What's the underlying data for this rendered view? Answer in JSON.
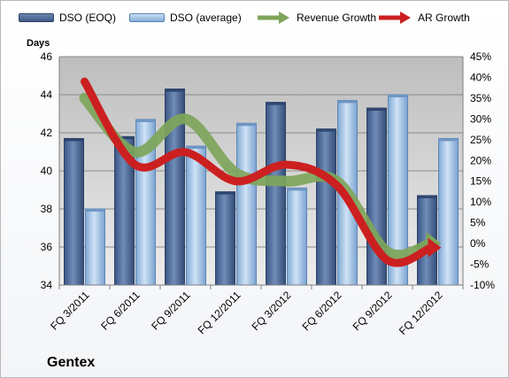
{
  "chart_data": {
    "type": "bar",
    "company": "Gentex",
    "ylabel": "Days",
    "categories": [
      "FQ 3/2011",
      "FQ 6/2011",
      "FQ 9/2011",
      "FQ 12/2011",
      "FQ 3/2012",
      "FQ 6/2012",
      "FQ 9/2012",
      "FQ 12/2012"
    ],
    "ylim": [
      34,
      46
    ],
    "yticks": [
      "34",
      "36",
      "38",
      "40",
      "42",
      "44",
      "46"
    ],
    "y2lim": [
      -10,
      45
    ],
    "y2ticks": [
      "-10%",
      "-5%",
      "0%",
      "5%",
      "10%",
      "15%",
      "20%",
      "25%",
      "30%",
      "35%",
      "40%",
      "45%"
    ],
    "series": [
      {
        "name": "DSO (EOQ)",
        "kind": "bar",
        "axis": "left",
        "color": "#4f6d98",
        "values": [
          41.7,
          41.8,
          44.3,
          38.9,
          43.6,
          42.2,
          43.3,
          38.7
        ]
      },
      {
        "name": "DSO (average)",
        "kind": "bar",
        "axis": "left",
        "color": "#9dc1e6",
        "values": [
          38.0,
          42.7,
          41.3,
          42.5,
          39.1,
          43.7,
          44.0,
          41.7
        ]
      },
      {
        "name": "Revenue Growth",
        "kind": "line",
        "axis": "right",
        "color": "#7ea55a",
        "values": [
          35,
          22,
          30,
          17,
          15,
          15,
          -2,
          0
        ]
      },
      {
        "name": "AR Growth",
        "kind": "line",
        "axis": "right",
        "color": "#cc2020",
        "values": [
          39,
          19,
          22,
          15,
          19,
          14,
          -4,
          -1
        ]
      }
    ],
    "grid": true,
    "legend_position": "top"
  }
}
